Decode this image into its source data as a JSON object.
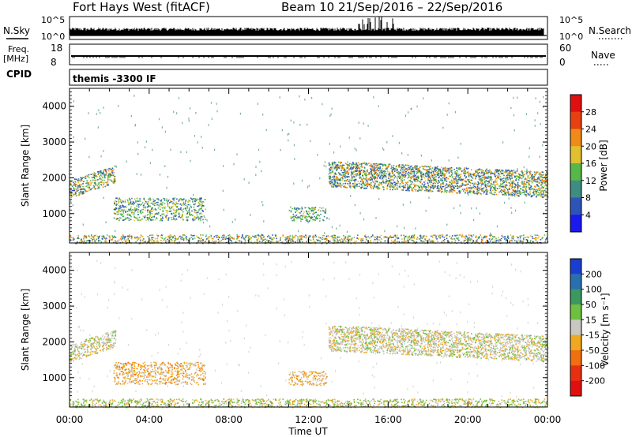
{
  "header": {
    "title": "Fort Hays West (fitACF)",
    "beam_info": "Beam 10  21/Sep/2016 – 22/Sep/2016"
  },
  "aux_panels": {
    "nsky_label": "N.Sky",
    "nsky_ticks": [
      "10^5",
      "10^0"
    ],
    "nsearch_label": "N.Search",
    "nsearch_ticks": [
      "10^5",
      "10^0"
    ],
    "freq_label": "Freq.",
    "freq_unit": "[MHz]",
    "freq_ticks": [
      "18",
      "8"
    ],
    "nave_label": "Nave",
    "nave_ticks": [
      "60",
      "0"
    ],
    "cpid_label": "CPID",
    "cpid_text": "themis -3300 IF"
  },
  "chart_data": [
    {
      "type": "heatmap",
      "panel": "power",
      "ylabel": "Slant Range [km]",
      "xlabel": "",
      "xlim": [
        "00:00",
        "24:00"
      ],
      "ylim": [
        180,
        4500
      ],
      "yticks": [
        "1000",
        "2000",
        "3000",
        "4000"
      ],
      "colorbar": {
        "label": "Power [dB]",
        "ticks": [
          "4",
          "8",
          "12",
          "16",
          "20",
          "24",
          "28"
        ],
        "colors": [
          "#1a1aee",
          "#2d55b8",
          "#3f8c82",
          "#55b848",
          "#e0c030",
          "#f08a18",
          "#e84010",
          "#e01010"
        ]
      },
      "regions": [
        {
          "t0": 0.0,
          "t1": 2.3,
          "r0": 1550,
          "r1": 2250,
          "level": "high"
        },
        {
          "t0": 2.2,
          "t1": 6.8,
          "r0": 820,
          "r1": 1450,
          "level": "medium"
        },
        {
          "t0": 11.0,
          "t1": 12.9,
          "r0": 800,
          "r1": 1200,
          "level": "medium"
        },
        {
          "t0": 13.0,
          "t1": 24.0,
          "r0": 1400,
          "r1": 2600,
          "level": "high"
        },
        {
          "t0": 0.0,
          "t1": 24.0,
          "r0": 180,
          "r1": 420,
          "level": "low"
        }
      ]
    },
    {
      "type": "heatmap",
      "panel": "velocity",
      "ylabel": "Slant Range [km]",
      "xlabel": "Time UT",
      "xlim": [
        "00:00",
        "24:00"
      ],
      "ylim": [
        180,
        4500
      ],
      "xticks": [
        "00:00",
        "04:00",
        "08:00",
        "12:00",
        "16:00",
        "20:00",
        "00:00"
      ],
      "yticks": [
        "1000",
        "2000",
        "3000",
        "4000"
      ],
      "colorbar": {
        "label": "Velocity [m s⁻¹]",
        "ticks": [
          "200",
          "100",
          "50",
          "15",
          "-15",
          "-50",
          "-100",
          "-200"
        ],
        "colors": [
          "#1a3fd0",
          "#2a70b0",
          "#3a9860",
          "#70c040",
          "#c8c8c0",
          "#f0a820",
          "#f07010",
          "#e83010",
          "#e01010"
        ]
      },
      "regions": [
        {
          "t0": 0.0,
          "t1": 2.3,
          "r0": 1550,
          "r1": 2250,
          "level": "ground"
        },
        {
          "t0": 2.2,
          "t1": 6.8,
          "r0": 820,
          "r1": 1450,
          "level": "away"
        },
        {
          "t0": 11.0,
          "t1": 12.9,
          "r0": 800,
          "r1": 1200,
          "level": "away"
        },
        {
          "t0": 13.0,
          "t1": 24.0,
          "r0": 1400,
          "r1": 2600,
          "level": "ground"
        },
        {
          "t0": 0.0,
          "t1": 24.0,
          "r0": 180,
          "r1": 420,
          "level": "near"
        }
      ]
    }
  ]
}
